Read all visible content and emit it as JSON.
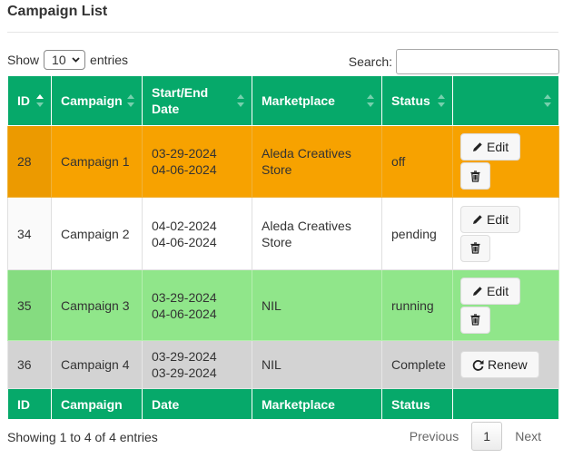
{
  "title": "Campaign List",
  "length_menu": {
    "show": "Show",
    "selected": "10",
    "entries": "entries"
  },
  "search": {
    "label": "Search:"
  },
  "table": {
    "header": [
      "ID",
      "Campaign",
      "Start/End Date",
      "Marketplace",
      "Status"
    ],
    "rows": [
      {
        "id": 28,
        "campaign": "Campaign 1",
        "start": "03-29-2024",
        "end": "04-06-2024",
        "marketplace": "Aleda Creatives Store",
        "status": "off",
        "action": "Edit",
        "deletable": true
      },
      {
        "id": 34,
        "campaign": "Campaign 2",
        "start": "04-02-2024",
        "end": "04-06-2024",
        "marketplace": "Aleda Creatives Store",
        "status": "pending",
        "action": "Edit",
        "deletable": true
      },
      {
        "id": 35,
        "campaign": "Campaign 3",
        "start": "03-29-2024",
        "end": "04-06-2024",
        "marketplace": "NIL",
        "status": "running",
        "action": "Edit",
        "deletable": true
      },
      {
        "id": 36,
        "campaign": "Campaign 4",
        "start": "03-29-2024",
        "end": "03-29-2024",
        "marketplace": "NIL",
        "status": "Complete",
        "action": "Renew",
        "deletable": false
      }
    ],
    "footer": [
      "ID",
      "Campaign",
      "Date",
      "Marketplace",
      "Status"
    ]
  },
  "info": "Showing 1 to 4 of 4 entries",
  "pagination": {
    "previous": "Previous",
    "pages": [
      "1"
    ],
    "next": "Next"
  }
}
